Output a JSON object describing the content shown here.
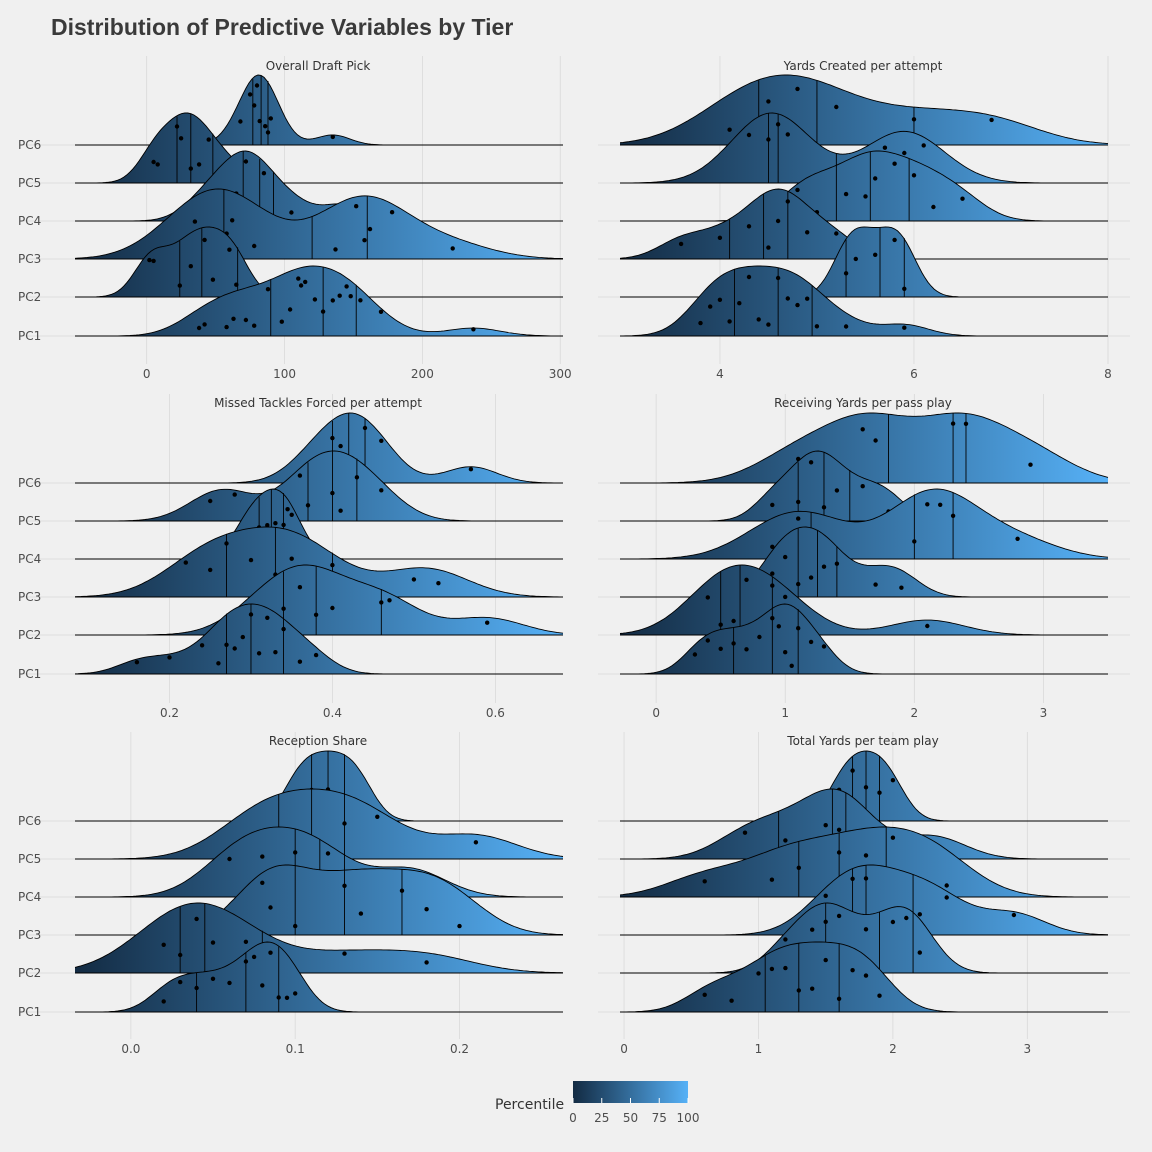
{
  "title": "Distribution of Predictive Variables by Tier",
  "legend": {
    "title": "Percentile",
    "ticks": [
      "0",
      "25",
      "50",
      "75",
      "100"
    ],
    "color_low": "#132B43",
    "color_high": "#56B1F7"
  },
  "chart_data": [
    {
      "type": "density-ridgeline",
      "title": "Overall Draft Pick",
      "categories": [
        "PC1",
        "PC2",
        "PC3",
        "PC4",
        "PC5",
        "PC6"
      ],
      "xticks": [
        "0",
        "100",
        "200",
        "300"
      ],
      "xlim": [
        -52,
        302
      ],
      "series": [
        {
          "name": "PC1",
          "points": [
            38,
            42,
            58,
            63,
            72,
            78,
            88,
            98,
            104,
            110,
            112,
            115,
            122,
            128,
            135,
            140,
            145,
            148,
            155,
            170,
            237
          ],
          "quartiles": [
            90,
            128,
            152
          ]
        },
        {
          "name": "PC2",
          "points": [
            2,
            5,
            24,
            32,
            42,
            48,
            60,
            65
          ],
          "quartiles": [
            24,
            40,
            66
          ]
        },
        {
          "name": "PC3",
          "points": [
            28,
            35,
            48,
            58,
            62,
            78,
            137,
            152,
            158,
            162,
            178,
            222
          ],
          "quartiles": [
            56,
            120,
            160
          ]
        },
        {
          "name": "PC4",
          "points": [
            40,
            55,
            65,
            72,
            78,
            85,
            105,
            143
          ],
          "quartiles": [
            70,
            82,
            92
          ]
        },
        {
          "name": "PC5",
          "points": [
            5,
            8,
            22,
            25,
            32,
            38,
            45,
            60
          ],
          "quartiles": [
            22,
            32,
            48
          ]
        },
        {
          "name": "PC6",
          "points": [
            68,
            75,
            78,
            80,
            82,
            86,
            88,
            90,
            135
          ],
          "quartiles": [
            77,
            83,
            88
          ]
        }
      ]
    },
    {
      "type": "density-ridgeline",
      "title": "Yards Created per attempt",
      "categories": [
        "PC1",
        "PC2",
        "PC3",
        "PC4",
        "PC5",
        "PC6"
      ],
      "xticks": [
        "4",
        "6",
        "8"
      ],
      "xlim": [
        2.97,
        8.0
      ],
      "series": [
        {
          "name": "PC1",
          "points": [
            3.8,
            3.9,
            4.0,
            4.1,
            4.2,
            4.3,
            4.4,
            4.5,
            4.6,
            4.7,
            4.8,
            4.9,
            5.0,
            5.3,
            5.9
          ],
          "quartiles": [
            4.15,
            4.6,
            4.95
          ]
        },
        {
          "name": "PC2",
          "points": [
            5.3,
            5.4,
            5.6,
            5.8,
            5.9
          ],
          "quartiles": [
            5.3,
            5.65,
            5.9
          ]
        },
        {
          "name": "PC3",
          "points": [
            3.6,
            4.0,
            4.3,
            4.5,
            4.6,
            4.7,
            4.9,
            5.2
          ],
          "quartiles": [
            4.1,
            4.45,
            4.7
          ]
        },
        {
          "name": "PC4",
          "points": [
            4.8,
            5.0,
            5.3,
            5.5,
            5.6,
            5.8,
            6.0,
            6.2,
            6.5
          ],
          "quartiles": [
            5.2,
            5.55,
            5.95
          ]
        },
        {
          "name": "PC5",
          "points": [
            4.3,
            4.5,
            4.6,
            4.7,
            5.7,
            5.9,
            6.1
          ],
          "quartiles": [
            4.5,
            4.6,
            5.2
          ]
        },
        {
          "name": "PC6",
          "points": [
            4.1,
            4.5,
            4.8,
            5.2,
            6.0,
            6.8
          ],
          "quartiles": [
            4.4,
            5.0,
            6.0
          ]
        }
      ]
    },
    {
      "type": "density-ridgeline",
      "title": "Missed Tackles Forced per attempt",
      "categories": [
        "PC1",
        "PC2",
        "PC3",
        "PC4",
        "PC5",
        "PC6"
      ],
      "xticks": [
        "0.2",
        "0.4",
        "0.6"
      ],
      "xlim": [
        0.084,
        0.683
      ],
      "series": [
        {
          "name": "PC1",
          "points": [
            0.16,
            0.2,
            0.24,
            0.26,
            0.27,
            0.28,
            0.29,
            0.3,
            0.31,
            0.32,
            0.33,
            0.34,
            0.36,
            0.38
          ],
          "quartiles": [
            0.27,
            0.3,
            0.34
          ]
        },
        {
          "name": "PC2",
          "points": [
            0.31,
            0.34,
            0.36,
            0.38,
            0.4,
            0.46,
            0.47,
            0.59
          ],
          "quartiles": [
            0.34,
            0.38,
            0.46
          ]
        },
        {
          "name": "PC3",
          "points": [
            0.22,
            0.25,
            0.27,
            0.3,
            0.33,
            0.35,
            0.36,
            0.4,
            0.5,
            0.53
          ],
          "quartiles": [
            0.27,
            0.33,
            0.4
          ]
        },
        {
          "name": "PC4",
          "points": [
            0.29,
            0.3,
            0.31,
            0.32,
            0.33,
            0.34,
            0.345,
            0.35
          ],
          "quartiles": [
            0.31,
            0.325,
            0.34
          ]
        },
        {
          "name": "PC5",
          "points": [
            0.25,
            0.28,
            0.36,
            0.37,
            0.4,
            0.41,
            0.43,
            0.46
          ],
          "quartiles": [
            0.37,
            0.4,
            0.43
          ]
        },
        {
          "name": "PC6",
          "points": [
            0.37,
            0.4,
            0.41,
            0.43,
            0.44,
            0.46,
            0.57
          ],
          "quartiles": [
            0.4,
            0.42,
            0.44
          ]
        }
      ]
    },
    {
      "type": "density-ridgeline",
      "title": "Receiving Yards per pass play",
      "categories": [
        "PC1",
        "PC2",
        "PC3",
        "PC4",
        "PC5",
        "PC6"
      ],
      "xticks": [
        "0",
        "1",
        "2",
        "3"
      ],
      "xlim": [
        -0.28,
        3.5
      ],
      "series": [
        {
          "name": "PC1",
          "points": [
            0.3,
            0.4,
            0.5,
            0.6,
            0.7,
            0.8,
            0.9,
            0.95,
            1.0,
            1.05,
            1.1,
            1.2,
            1.3
          ],
          "quartiles": [
            0.6,
            0.9,
            1.1
          ]
        },
        {
          "name": "PC2",
          "points": [
            0.4,
            0.5,
            0.6,
            0.7,
            0.9,
            1.0,
            2.1
          ],
          "quartiles": [
            0.5,
            0.65,
            0.9
          ]
        },
        {
          "name": "PC3",
          "points": [
            0.9,
            1.0,
            1.1,
            1.2,
            1.3,
            1.4,
            1.7,
            1.9
          ],
          "quartiles": [
            1.1,
            1.25,
            1.4
          ]
        },
        {
          "name": "PC4",
          "points": [
            0.9,
            1.1,
            1.3,
            2.0,
            2.1,
            2.2,
            2.3,
            2.8
          ],
          "quartiles": [
            1.2,
            2.0,
            2.3
          ]
        },
        {
          "name": "PC5",
          "points": [
            0.9,
            1.1,
            1.2,
            1.3,
            1.4,
            1.6,
            1.8
          ],
          "quartiles": [
            1.1,
            1.3,
            1.5
          ]
        },
        {
          "name": "PC6",
          "points": [
            1.1,
            1.6,
            1.7,
            2.3,
            2.4,
            2.9
          ],
          "quartiles": [
            1.8,
            2.3,
            2.4
          ]
        }
      ]
    },
    {
      "type": "density-ridgeline",
      "title": "Reception Share",
      "categories": [
        "PC1",
        "PC2",
        "PC3",
        "PC4",
        "PC5",
        "PC6"
      ],
      "xticks": [
        "0.0",
        "0.1",
        "0.2"
      ],
      "xlim": [
        -0.034,
        0.263
      ],
      "series": [
        {
          "name": "PC1",
          "points": [
            0.02,
            0.03,
            0.04,
            0.05,
            0.06,
            0.07,
            0.075,
            0.08,
            0.085,
            0.09,
            0.095,
            0.1
          ],
          "quartiles": [
            0.04,
            0.07,
            0.09
          ]
        },
        {
          "name": "PC2",
          "points": [
            0.02,
            0.03,
            0.04,
            0.05,
            0.07,
            0.13,
            0.18
          ],
          "quartiles": [
            0.03,
            0.045,
            0.08
          ]
        },
        {
          "name": "PC3",
          "points": [
            0.08,
            0.085,
            0.1,
            0.13,
            0.14,
            0.165,
            0.18,
            0.2
          ],
          "quartiles": [
            0.1,
            0.13,
            0.165
          ]
        },
        {
          "name": "PC4",
          "points": [
            0.06,
            0.08,
            0.1,
            0.12,
            0.17
          ],
          "quartiles": [
            0.1,
            0.115,
            0.13
          ]
        },
        {
          "name": "PC5",
          "points": [
            0.07,
            0.09,
            0.11,
            0.13,
            0.15,
            0.21
          ],
          "quartiles": [
            0.09,
            0.11,
            0.13
          ]
        },
        {
          "name": "PC6",
          "points": [
            0.1,
            0.11,
            0.12,
            0.13,
            0.14
          ],
          "quartiles": [
            0.11,
            0.12,
            0.13
          ]
        }
      ]
    },
    {
      "type": "density-ridgeline",
      "title": "Total Yards per team play",
      "categories": [
        "PC1",
        "PC2",
        "PC3",
        "PC4",
        "PC5",
        "PC6"
      ],
      "xticks": [
        "0",
        "1",
        "2",
        "3"
      ],
      "xlim": [
        -0.03,
        3.6
      ],
      "series": [
        {
          "name": "PC1",
          "points": [
            0.6,
            0.8,
            1.0,
            1.1,
            1.2,
            1.3,
            1.4,
            1.5,
            1.6,
            1.7,
            1.8,
            1.9
          ],
          "quartiles": [
            1.05,
            1.3,
            1.6
          ]
        },
        {
          "name": "PC2",
          "points": [
            1.2,
            1.4,
            1.5,
            1.6,
            1.8,
            2.0,
            2.1,
            2.2
          ],
          "quartiles": [
            1.5,
            1.9,
            2.15
          ]
        },
        {
          "name": "PC3",
          "points": [
            1.5,
            1.7,
            1.8,
            2.0,
            2.2,
            2.4,
            2.9
          ],
          "quartiles": [
            1.7,
            1.8,
            2.15
          ]
        },
        {
          "name": "PC4",
          "points": [
            0.6,
            1.1,
            1.3,
            1.6,
            1.8,
            2.0,
            2.2,
            2.4
          ],
          "quartiles": [
            1.3,
            1.6,
            1.95
          ]
        },
        {
          "name": "PC5",
          "points": [
            0.9,
            1.2,
            1.5,
            1.6,
            1.7,
            2.3
          ],
          "quartiles": [
            1.15,
            1.55,
            1.65
          ]
        },
        {
          "name": "PC6",
          "points": [
            1.6,
            1.7,
            1.8,
            1.9,
            2.0
          ],
          "quartiles": [
            1.7,
            1.8,
            1.9
          ]
        }
      ]
    }
  ]
}
